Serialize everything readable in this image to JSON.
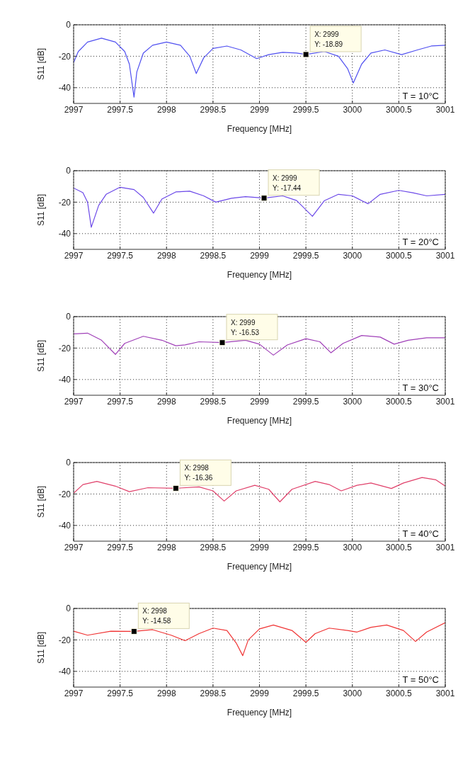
{
  "chart_data": [
    {
      "type": "line",
      "xlabel": "Frequency [MHz]",
      "ylabel": "S11 [dB]",
      "xlim": [
        2997,
        3001
      ],
      "xticks": [
        2997,
        2997.5,
        2998,
        2998.5,
        2999,
        2999.5,
        3000,
        3000.5,
        3001
      ],
      "ylim": [
        -50,
        0
      ],
      "yticks": [
        0,
        -20,
        -40
      ],
      "grid": true,
      "line_style": "solid",
      "marker": "none",
      "series": [
        {
          "color": "#5050f0",
          "x": [
            2997,
            2997.05,
            2997.15,
            2997.3,
            2997.45,
            2997.55,
            2997.6,
            2997.65,
            2997.68,
            2997.75,
            2997.85,
            2998,
            2998.15,
            2998.25,
            2998.32,
            2998.4,
            2998.5,
            2998.65,
            2998.8,
            2998.97,
            2999.1,
            2999.25,
            2999.4,
            2999.5,
            2999.7,
            2999.85,
            2999.95,
            3000.01,
            3000.1,
            3000.2,
            3000.35,
            3000.53,
            3000.7,
            3000.85,
            3001
          ],
          "values": [
            -24,
            -17,
            -11,
            -8.5,
            -11,
            -17,
            -25,
            -46,
            -30,
            -18,
            -13,
            -11,
            -13,
            -20,
            -31,
            -21,
            -15,
            -13.5,
            -16,
            -21.5,
            -19,
            -17.5,
            -18,
            -18.89,
            -17,
            -20,
            -28,
            -37,
            -25,
            -18,
            -16,
            -19,
            -16,
            -13.5,
            -13
          ]
        }
      ],
      "annotations": [
        {
          "text": "X: 2999\nY: -18.89",
          "x": 2999.5,
          "y": -18.89
        },
        "T = 10°C"
      ]
    },
    {
      "type": "line",
      "xlabel": "Frequency [MHz]",
      "ylabel": "S11 [dB]",
      "xlim": [
        2997,
        3001
      ],
      "xticks": [
        2997,
        2997.5,
        2998,
        2998.5,
        2999,
        2999.5,
        3000,
        3000.5,
        3001
      ],
      "ylim": [
        -50,
        0
      ],
      "yticks": [
        0,
        -20,
        -40
      ],
      "grid": true,
      "line_style": "solid",
      "marker": "none",
      "series": [
        {
          "color": "#6b48e8",
          "x": [
            2997,
            2997.1,
            2997.15,
            2997.19,
            2997.27,
            2997.35,
            2997.5,
            2997.65,
            2997.75,
            2997.86,
            2997.95,
            2998.1,
            2998.25,
            2998.4,
            2998.53,
            2998.7,
            2998.85,
            2999.05,
            2999.25,
            2999.4,
            2999.57,
            2999.7,
            2999.85,
            3000,
            3000.1,
            3000.17,
            3000.3,
            3000.5,
            3000.65,
            3000.8,
            3001
          ],
          "values": [
            -11,
            -14,
            -20,
            -36,
            -22,
            -15,
            -10.5,
            -12,
            -17,
            -27,
            -18,
            -13.5,
            -13,
            -16,
            -20,
            -17.5,
            -16.5,
            -17.44,
            -16,
            -19,
            -29,
            -19,
            -15,
            -16,
            -19,
            -21,
            -15,
            -12.5,
            -14,
            -16,
            -15
          ]
        }
      ],
      "annotations": [
        {
          "text": "X: 2999\nY: -17.44",
          "x": 2999.05,
          "y": -17.44
        },
        "T = 20°C"
      ]
    },
    {
      "type": "line",
      "xlabel": "Frequency [MHz]",
      "ylabel": "S11 [dB]",
      "xlim": [
        2997,
        3001
      ],
      "xticks": [
        2997,
        2997.5,
        2998,
        2998.5,
        2999,
        2999.5,
        3000,
        3000.5,
        3001
      ],
      "ylim": [
        -50,
        0
      ],
      "yticks": [
        0,
        -20,
        -40
      ],
      "grid": true,
      "line_style": "solid",
      "marker": "none",
      "series": [
        {
          "color": "#a040b8",
          "x": [
            2997,
            2997.15,
            2997.3,
            2997.45,
            2997.55,
            2997.75,
            2997.95,
            2998.1,
            2998.2,
            2998.35,
            2998.6,
            2998.85,
            2999,
            2999.15,
            2999.3,
            2999.5,
            2999.65,
            2999.77,
            2999.9,
            3000.1,
            3000.3,
            3000.45,
            3000.6,
            3000.8,
            3001
          ],
          "values": [
            -11,
            -10.5,
            -15,
            -24,
            -17,
            -12.5,
            -15,
            -18.5,
            -18,
            -16,
            -16.53,
            -15,
            -17.5,
            -24.5,
            -18,
            -14,
            -16,
            -23,
            -17,
            -12,
            -13,
            -17.5,
            -15,
            -13.5,
            -13.5
          ]
        }
      ],
      "annotations": [
        {
          "text": "X: 2999\nY: -16.53",
          "x": 2998.6,
          "y": -16.53
        },
        "T = 30°C"
      ]
    },
    {
      "type": "line",
      "xlabel": "Frequency [MHz]",
      "ylabel": "S11 [dB]",
      "xlim": [
        2997,
        3001
      ],
      "xticks": [
        2997,
        2997.5,
        2998,
        2998.5,
        2999,
        2999.5,
        3000,
        3000.5,
        3001
      ],
      "ylim": [
        -50,
        0
      ],
      "yticks": [
        0,
        -20,
        -40
      ],
      "grid": true,
      "line_style": "solid",
      "marker": "none",
      "series": [
        {
          "color": "#e0406a",
          "x": [
            2997,
            2997.1,
            2997.25,
            2997.45,
            2997.6,
            2997.8,
            2998.1,
            2998.35,
            2998.5,
            2998.62,
            2998.75,
            2998.95,
            2999.1,
            2999.22,
            2999.35,
            2999.6,
            2999.75,
            2999.88,
            3000.05,
            3000.2,
            3000.42,
            3000.55,
            3000.75,
            3000.9,
            3001
          ],
          "values": [
            -19.5,
            -14,
            -12,
            -15,
            -18.5,
            -16,
            -16.36,
            -15.5,
            -18,
            -24.5,
            -18,
            -14.5,
            -17,
            -25,
            -17,
            -12,
            -14,
            -18,
            -14.5,
            -13,
            -16.5,
            -13,
            -9.5,
            -11,
            -15
          ]
        }
      ],
      "annotations": [
        {
          "text": "X: 2998\nY: -16.36",
          "x": 2998.1,
          "y": -16.36
        },
        "T = 40°C"
      ]
    },
    {
      "type": "line",
      "xlabel": "Frequency [MHz]",
      "ylabel": "S11 [dB]",
      "xlim": [
        2997,
        3001
      ],
      "xticks": [
        2997,
        2997.5,
        2998,
        2998.5,
        2999,
        2999.5,
        3000,
        3000.5,
        3001
      ],
      "ylim": [
        -50,
        0
      ],
      "yticks": [
        0,
        -20,
        -40
      ],
      "grid": true,
      "line_style": "solid",
      "marker": "none",
      "series": [
        {
          "color": "#f03434",
          "x": [
            2997,
            2997.15,
            2997.4,
            2997.65,
            2997.85,
            2998.05,
            2998.2,
            2998.35,
            2998.5,
            2998.65,
            2998.75,
            2998.82,
            2998.88,
            2999,
            2999.15,
            2999.35,
            2999.5,
            2999.6,
            2999.75,
            2999.95,
            3000.05,
            3000.2,
            3000.37,
            3000.55,
            3000.68,
            3000.8,
            3001
          ],
          "values": [
            -14.5,
            -17,
            -14.5,
            -14.58,
            -13.5,
            -17,
            -20.5,
            -16,
            -12.5,
            -14,
            -22,
            -30,
            -20,
            -13,
            -10.5,
            -14,
            -21.5,
            -16,
            -12.5,
            -14,
            -15,
            -12,
            -10.5,
            -14,
            -21,
            -15,
            -9
          ]
        }
      ],
      "annotations": [
        {
          "text": "X: 2998\nY: -14.58",
          "x": 2997.65,
          "y": -14.58
        },
        "T = 50°C"
      ]
    }
  ]
}
